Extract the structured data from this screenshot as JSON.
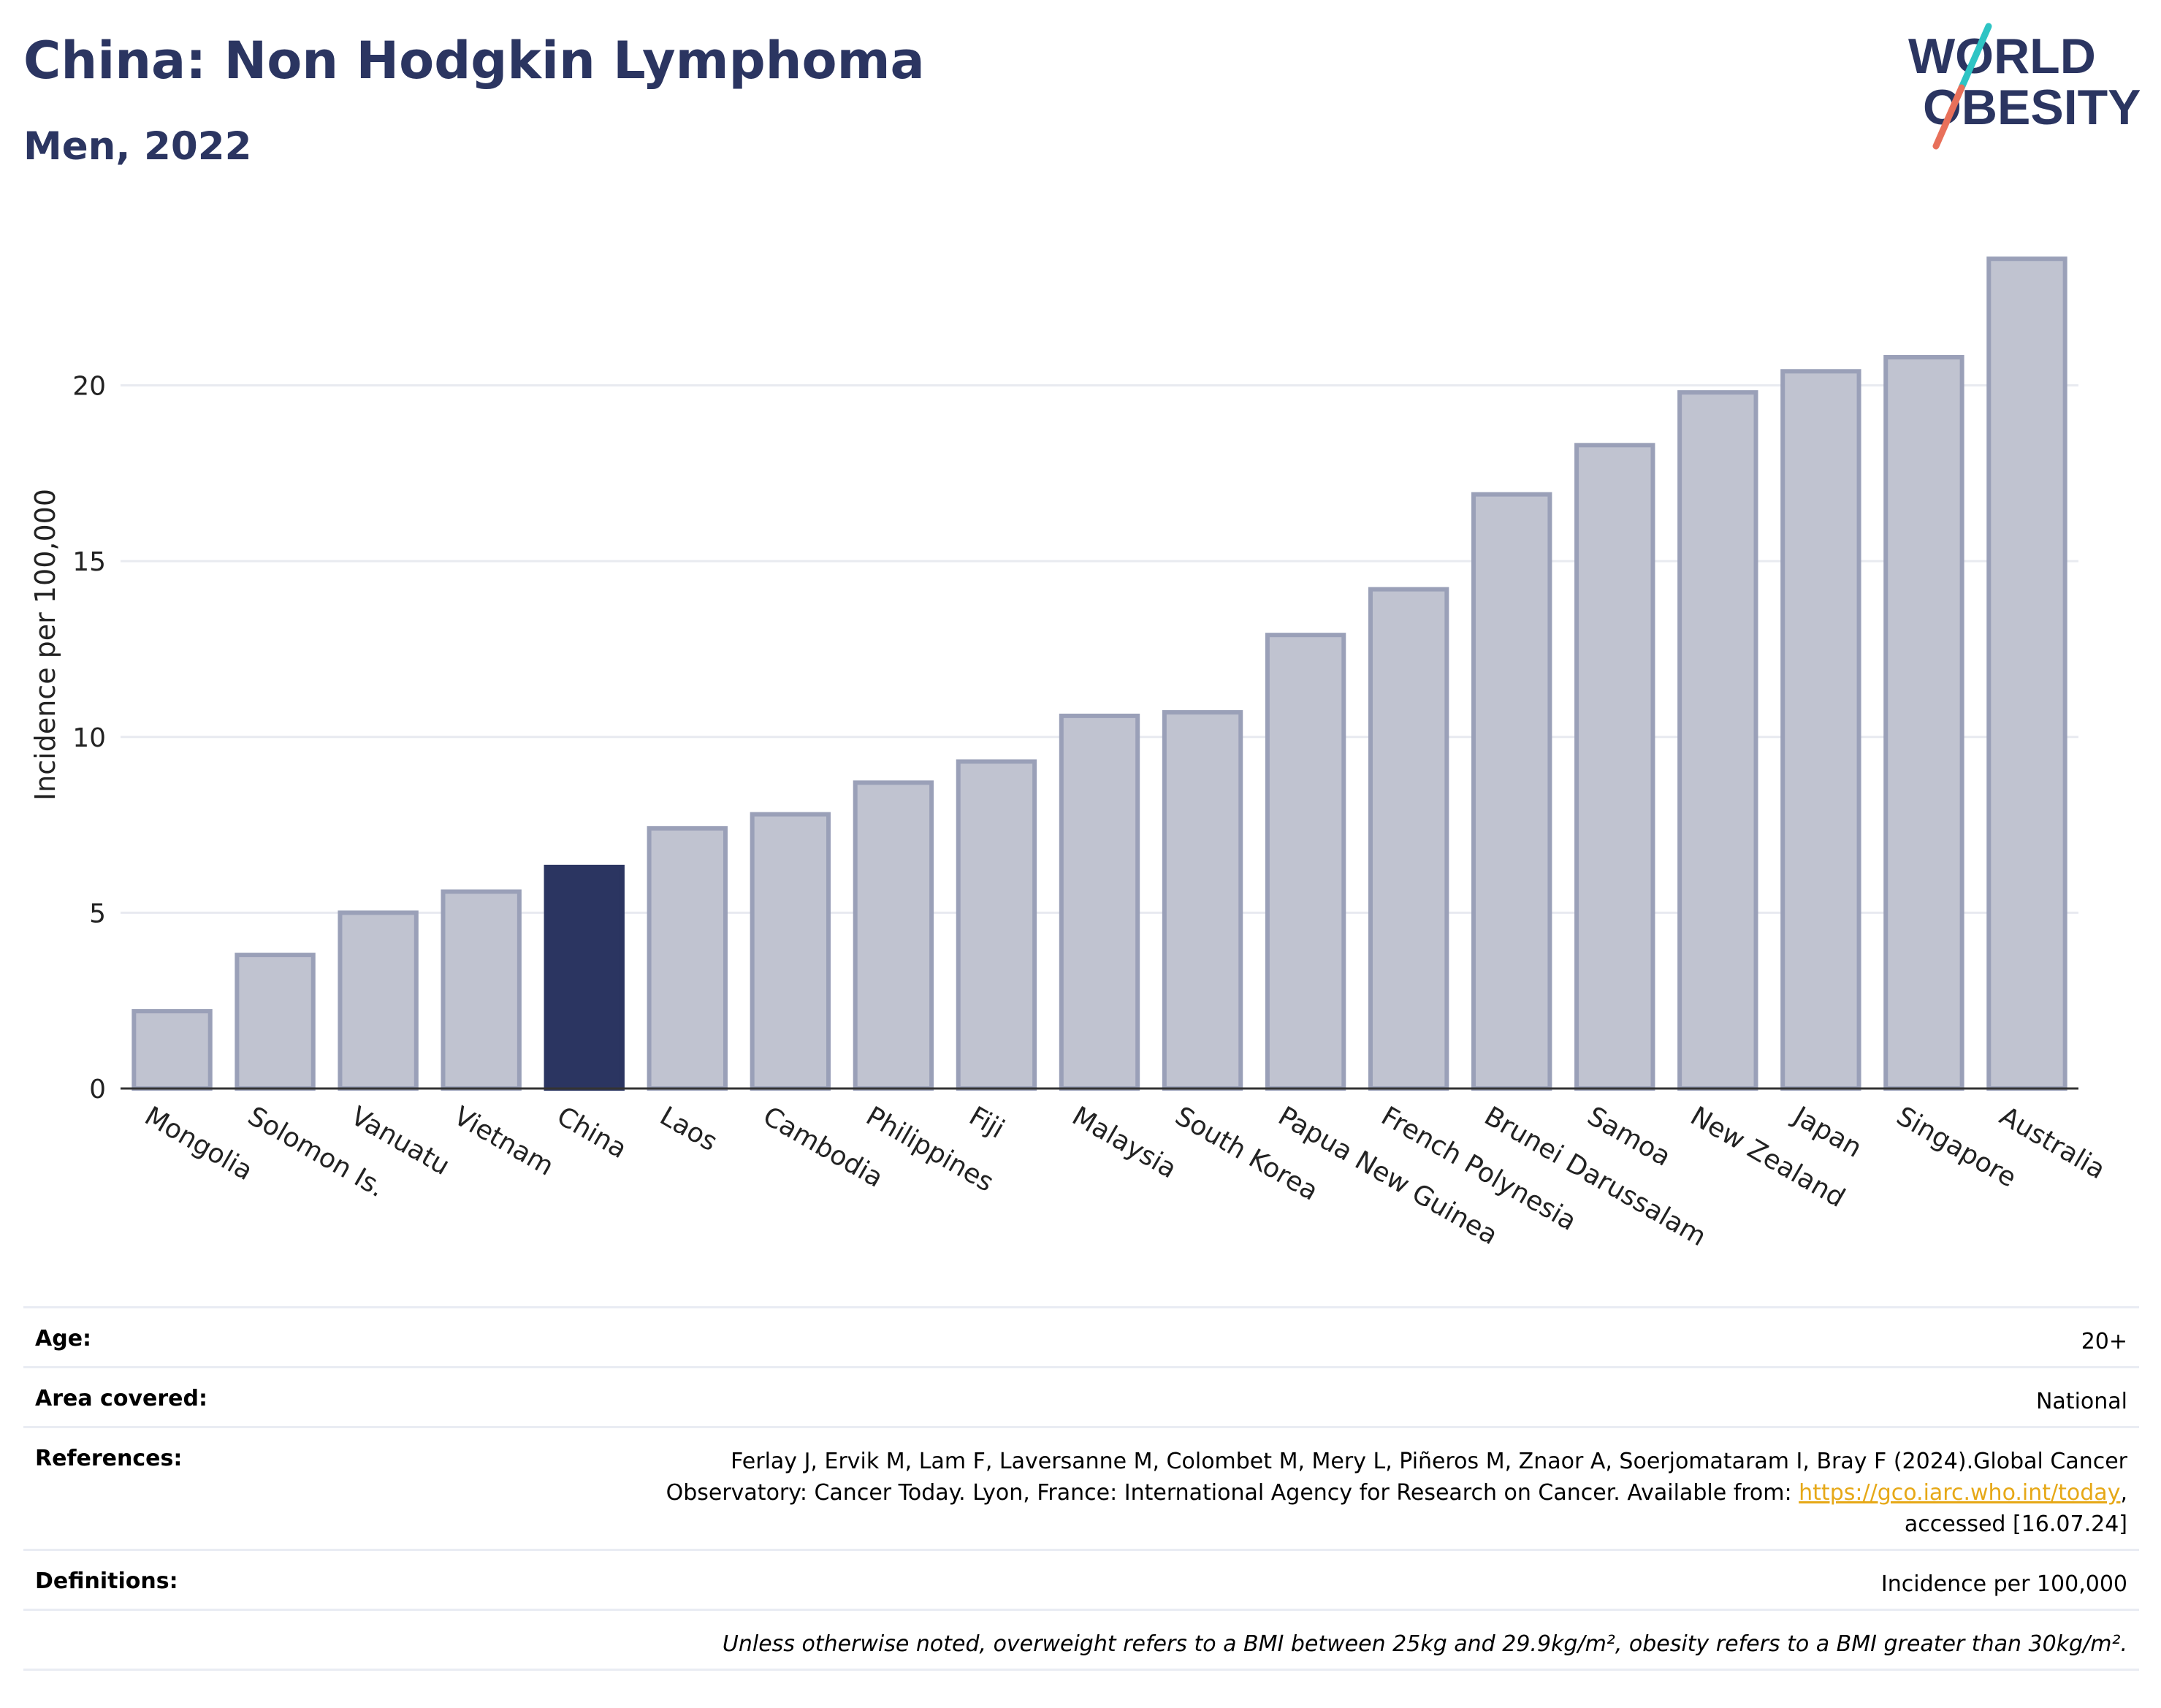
{
  "header": {
    "title": "China: Non Hodgkin Lymphoma",
    "subtitle": "Men, 2022"
  },
  "logo": {
    "line1": "WORLD",
    "line2": "OBESITY",
    "colors": {
      "text": "#2b3561",
      "slash_top": "#2ec4c4",
      "slash_bottom": "#e8705a"
    }
  },
  "chart_data": {
    "type": "bar",
    "title": "China: Non Hodgkin Lymphoma",
    "subtitle": "Men, 2022",
    "xlabel": "",
    "ylabel": "Incidence per 100,000",
    "ylim": [
      0,
      24
    ],
    "yticks": [
      0,
      5,
      10,
      15,
      20
    ],
    "grid": true,
    "highlight": "China",
    "colors": {
      "bar": "#c0c3d0",
      "bar_edge": "#9aa0b8",
      "highlight": "#2b3561"
    },
    "categories": [
      "Mongolia",
      "Solomon Is.",
      "Vanuatu",
      "Vietnam",
      "China",
      "Laos",
      "Cambodia",
      "Philippines",
      "Fiji",
      "Malaysia",
      "South Korea",
      "Papua New Guinea",
      "French Polynesia",
      "Brunei Darussalam",
      "Samoa",
      "New Zealand",
      "Japan",
      "Singapore",
      "Australia"
    ],
    "values": [
      2.2,
      3.8,
      5.0,
      5.6,
      6.3,
      7.4,
      7.8,
      8.7,
      9.3,
      10.6,
      10.7,
      12.9,
      14.2,
      16.9,
      18.3,
      19.8,
      20.4,
      20.8,
      23.6
    ]
  },
  "meta": {
    "age_label": "Age:",
    "age_value": "20+",
    "area_label": "Area covered:",
    "area_value": "National",
    "references_label": "References:",
    "references_line1": "Ferlay J, Ervik M, Lam F, Laversanne M, Colombet M, Mery L, Piñeros M, Znaor A, Soerjomataram I, Bray F (2024).Global Cancer",
    "references_line2": "Observatory: Cancer Today. Lyon, France: International Agency for Research on Cancer. Available from: ",
    "references_link": "https://gco.iarc.who.int/today",
    "references_line2_end": ",",
    "references_line3": "accessed [16.07.24]",
    "definitions_label": "Definitions:",
    "definitions_value": "Incidence per 100,000",
    "note": "Unless otherwise noted, overweight refers to a BMI between 25kg and 29.9kg/m², obesity refers to a BMI greater than 30kg/m²."
  }
}
